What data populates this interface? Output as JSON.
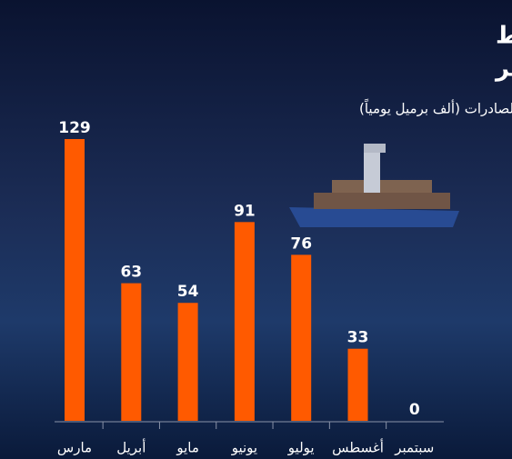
{
  "chart_data": {
    "type": "bar",
    "title": [
      "الحصار الأميركي يخفض صادرات النفط",
      "عبر ميناء جاسك الإيراني إلى الصفر"
    ],
    "subtitle": "الصادرات (ألف برميل يومياً)",
    "categories": [
      "مارس",
      "أبريل",
      "مايو",
      "يونيو",
      "يوليو",
      "أغسطس",
      "سبتمبر"
    ],
    "values": [
      129,
      63,
      54,
      91,
      76,
      33,
      0
    ],
    "color": "#ff5a00"
  }
}
